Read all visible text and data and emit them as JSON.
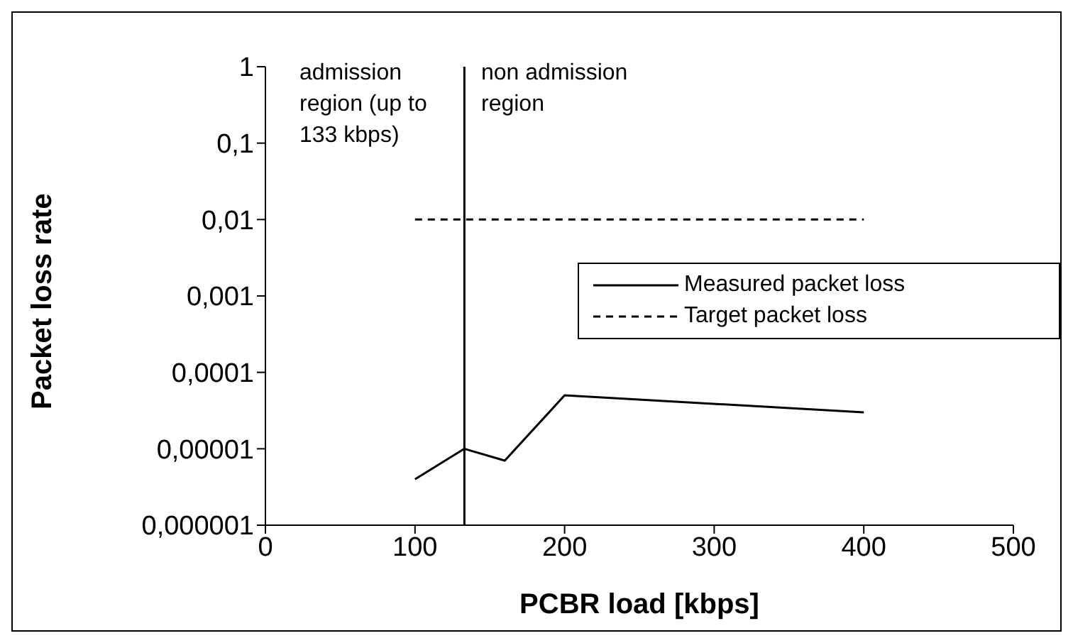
{
  "chart_data": {
    "type": "line",
    "xlabel": "PCBR load [kbps]",
    "ylabel": "Packet loss rate",
    "log": "y",
    "legend": "right",
    "marker": "none",
    "xlim": [
      0,
      500
    ],
    "xticks": [
      0,
      100,
      200,
      300,
      400,
      500
    ],
    "ylim": [
      1e-06,
      1
    ],
    "yticks": [
      {
        "value": 1e-06,
        "label": "0,000001"
      },
      {
        "value": 1e-05,
        "label": "0,00001"
      },
      {
        "value": 0.0001,
        "label": "0,0001"
      },
      {
        "value": 0.001,
        "label": "0,001"
      },
      {
        "value": 0.01,
        "label": "0,01"
      },
      {
        "value": 0.1,
        "label": "0,1"
      },
      1
    ],
    "series": [
      {
        "name": "Measured packet loss",
        "color": "#000000",
        "line_style": "solid",
        "x": [
          100,
          133,
          160,
          200,
          400
        ],
        "values": [
          4e-06,
          1e-05,
          7e-06,
          5e-05,
          3e-05
        ]
      },
      {
        "name": "Target packet loss",
        "color": "#000000",
        "line_style": "dashed",
        "x": [
          100,
          400
        ],
        "values": [
          0.01,
          0.01
        ]
      }
    ],
    "ref_lines": [
      {
        "axis": "x",
        "value": 133,
        "color": "#000000"
      }
    ],
    "annotations": [
      "admission region (up to 133 kbps)",
      "non admission region"
    ]
  }
}
